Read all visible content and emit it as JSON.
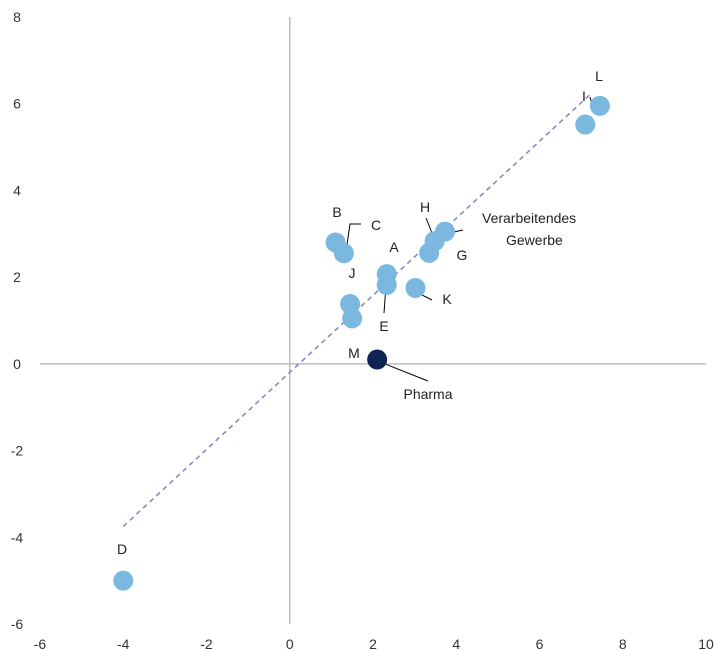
{
  "chart_data": {
    "type": "scatter",
    "title": "",
    "xlabel": "",
    "ylabel": "",
    "xlim": [
      -6,
      10
    ],
    "ylim": [
      -6,
      8
    ],
    "x_ticks": [
      "-6",
      "-4",
      "-2",
      "0",
      "2",
      "4",
      "6",
      "8",
      "10"
    ],
    "y_ticks": [
      "-6",
      "-4",
      "-2",
      "0",
      "2",
      "4",
      "6",
      "8"
    ],
    "grid": false,
    "colors": {
      "points": "#7ab8df",
      "highlight": "#0f2356",
      "trendline": "#8c89c0",
      "axis": "#bfbfbf"
    },
    "trendline": {
      "x": [
        -4,
        7.2
      ],
      "y": [
        -3.75,
        6.2
      ],
      "style": "dashed"
    },
    "points": [
      {
        "label": "",
        "x": 1.5,
        "y": 1.05
      },
      {
        "label": "",
        "x": 1.45,
        "y": 1.38
      },
      {
        "label": "B",
        "x": 1.1,
        "y": 2.8
      },
      {
        "label": "J",
        "x": 1.3,
        "y": 2.55
      },
      {
        "label": "A",
        "x": 2.33,
        "y": 2.07
      },
      {
        "label": "E",
        "x": 2.33,
        "y": 1.82
      },
      {
        "label": "K",
        "x": 3.02,
        "y": 1.75
      },
      {
        "label": "G",
        "x": 3.35,
        "y": 2.56
      },
      {
        "label": "H",
        "x": 3.48,
        "y": 2.83
      },
      {
        "label": "Verarbeitendes Gewerbe",
        "x": 3.73,
        "y": 3.05
      },
      {
        "label": "I",
        "x": 7.1,
        "y": 5.52
      },
      {
        "label": "L",
        "x": 7.45,
        "y": 5.95
      },
      {
        "label": "D",
        "x": -4.0,
        "y": -5.0
      },
      {
        "label": "M",
        "x": 2.1,
        "y": 0.1,
        "highlight": true
      }
    ],
    "annotations": [
      {
        "text": "B",
        "role": "point-label"
      },
      {
        "text": "C",
        "role": "point-label"
      },
      {
        "text": "J",
        "role": "point-label"
      },
      {
        "text": "A",
        "role": "point-label"
      },
      {
        "text": "E",
        "role": "point-label"
      },
      {
        "text": "K",
        "role": "point-label"
      },
      {
        "text": "H",
        "role": "point-label"
      },
      {
        "text": "G",
        "role": "point-label"
      },
      {
        "text": "Verarbeitendes",
        "role": "point-label"
      },
      {
        "text": "Gewerbe",
        "role": "point-label"
      },
      {
        "text": "I",
        "role": "point-label"
      },
      {
        "text": "L",
        "role": "point-label"
      },
      {
        "text": "D",
        "role": "point-label"
      },
      {
        "text": "M",
        "role": "point-label"
      },
      {
        "text": "Pharma",
        "role": "point-label"
      }
    ]
  }
}
